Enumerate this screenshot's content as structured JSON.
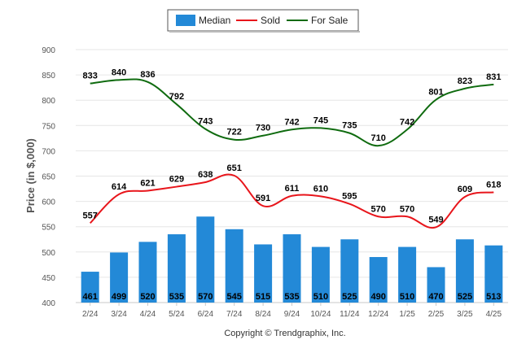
{
  "chart_data": {
    "type": "bar",
    "ylabel": "Price (in $,000)",
    "xlabel": "",
    "ylim": [
      400,
      900
    ],
    "yticks": [
      400,
      450,
      500,
      550,
      600,
      650,
      700,
      750,
      800,
      850,
      900
    ],
    "grid": true,
    "legend_position": "top-center",
    "categories": [
      "2/24",
      "3/24",
      "4/24",
      "5/24",
      "6/24",
      "7/24",
      "8/24",
      "9/24",
      "10/24",
      "11/24",
      "12/24",
      "1/25",
      "2/25",
      "3/25",
      "4/25"
    ],
    "series": [
      {
        "name": "Median",
        "type": "bar",
        "color": "#2389d7",
        "values": [
          461,
          499,
          520,
          535,
          570,
          545,
          515,
          535,
          510,
          525,
          490,
          510,
          470,
          525,
          513
        ]
      },
      {
        "name": "Sold",
        "type": "line",
        "color": "#e8151b",
        "values": [
          557,
          614,
          621,
          629,
          638,
          651,
          591,
          611,
          610,
          595,
          570,
          570,
          549,
          609,
          618
        ]
      },
      {
        "name": "For Sale",
        "type": "line",
        "color": "#0f6b0f",
        "values": [
          833,
          840,
          836,
          792,
          743,
          722,
          730,
          742,
          745,
          735,
          710,
          742,
          801,
          823,
          831
        ]
      }
    ],
    "footer": "Copyright © Trendgraphix, Inc."
  }
}
